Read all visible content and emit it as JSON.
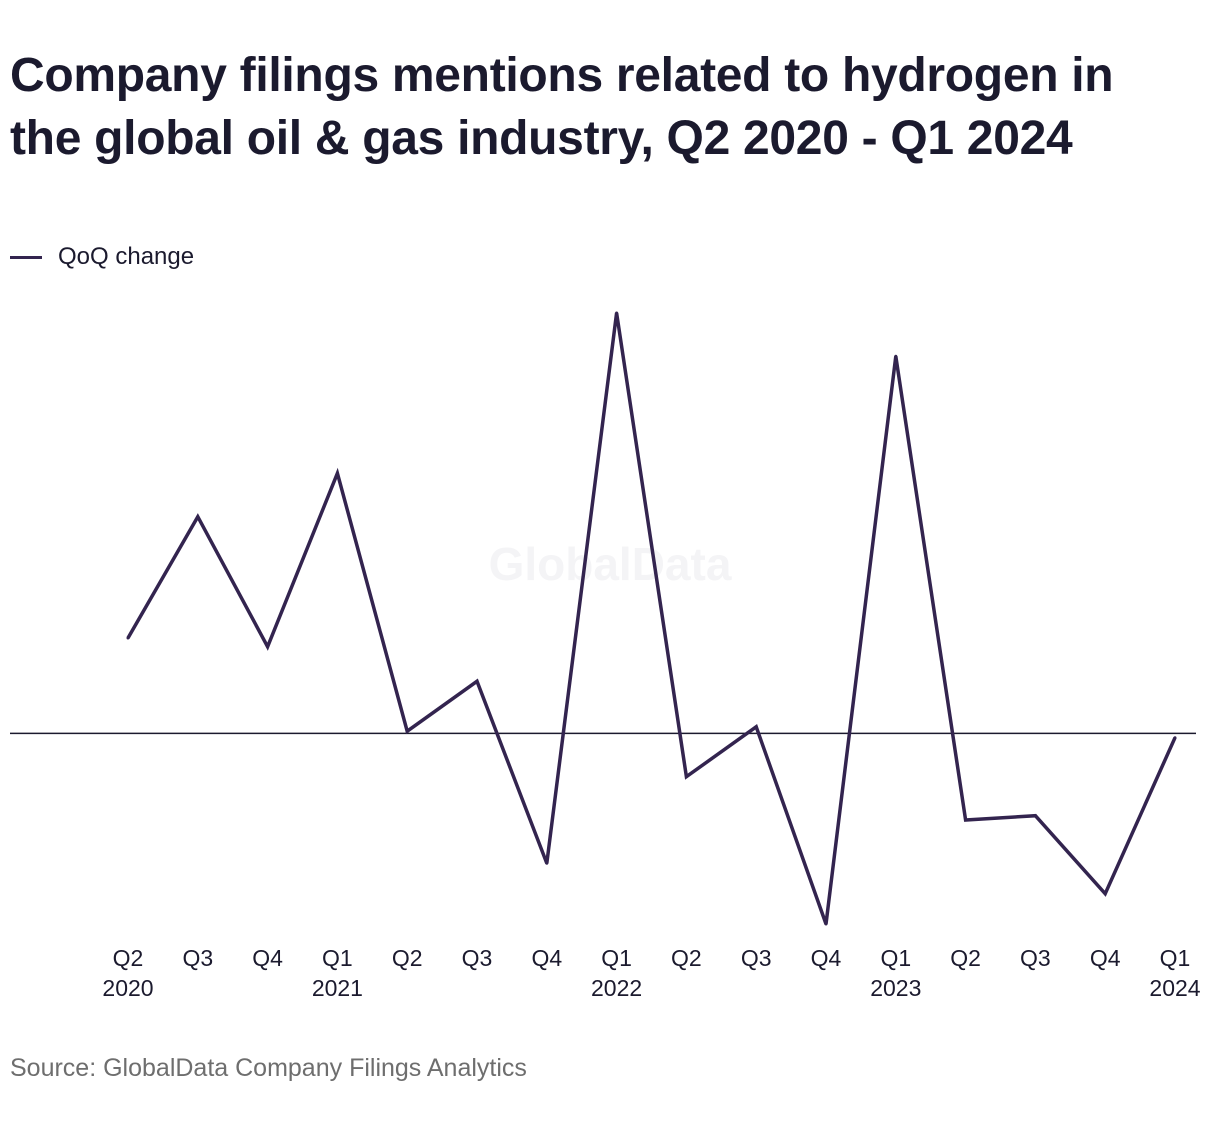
{
  "title": "Company filings mentions related to hydrogen in the global oil & gas industry, Q2 2020 - Q1 2024",
  "source": "Source: GlobalData Company Filings Analytics",
  "watermark": "GlobalData",
  "colors": {
    "series": "#33244f",
    "zero_line": "#1b1a2e",
    "source_text": "#6e6e6e",
    "watermark": "#f4f4f6"
  },
  "chart_data": {
    "type": "line",
    "title": "Company filings mentions related to hydrogen in the global oil & gas industry, Q2 2020 - Q1 2024",
    "xlabel": "",
    "ylabel": "",
    "categories": [
      [
        "Q2",
        "2020"
      ],
      [
        "Q3",
        ""
      ],
      [
        "Q4",
        ""
      ],
      [
        "Q1",
        "2021"
      ],
      [
        "Q2",
        ""
      ],
      [
        "Q3",
        ""
      ],
      [
        "Q4",
        ""
      ],
      [
        "Q1",
        "2022"
      ],
      [
        "Q2",
        ""
      ],
      [
        "Q3",
        ""
      ],
      [
        "Q4",
        ""
      ],
      [
        "Q1",
        "2023"
      ],
      [
        "Q2",
        ""
      ],
      [
        "Q3",
        ""
      ],
      [
        "Q4",
        ""
      ],
      [
        "Q1",
        "2024"
      ]
    ],
    "series": [
      {
        "name": "QoQ change",
        "values": [
          22,
          50,
          20,
          60,
          0.5,
          12,
          -30,
          97,
          -10,
          1.5,
          -44,
          87,
          -20,
          -19,
          -37,
          -1
        ]
      }
    ],
    "ylim": [
      -50,
      100
    ],
    "zero_line": true,
    "grid": false,
    "y_axis_labels_shown": false,
    "legend_position": "top-left"
  }
}
